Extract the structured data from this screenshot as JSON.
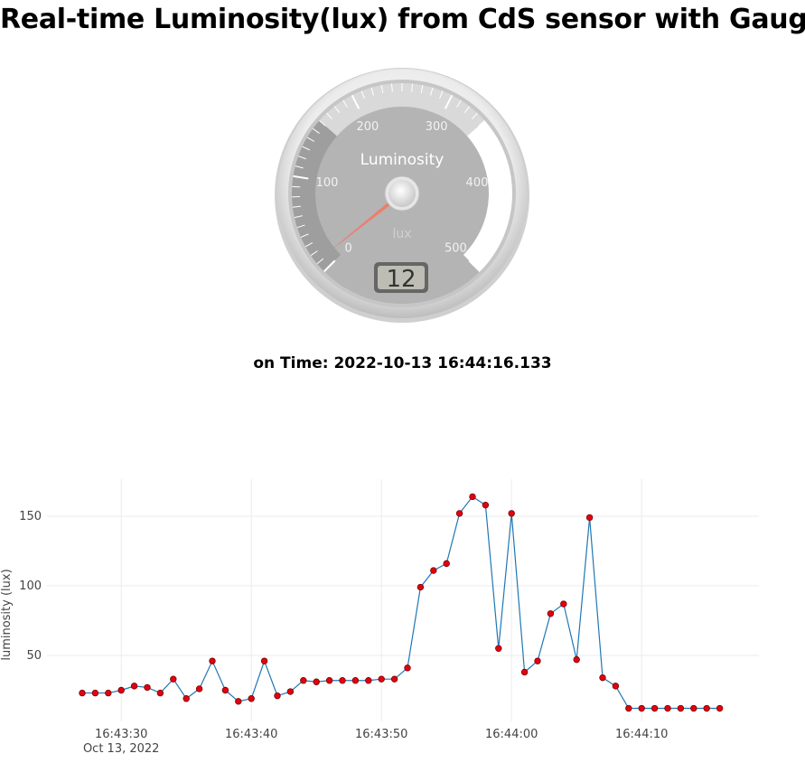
{
  "page": {
    "title": "Real-time Luminosity(lux) from CdS sensor with Gauge",
    "time_prefix": "on Time:",
    "time_value": "2022-10-13 16:44:16.133"
  },
  "gauge": {
    "title": "Luminosity",
    "units": "lux",
    "min": 0,
    "max": 500,
    "major_ticks": [
      "0",
      "100",
      "200",
      "300",
      "400",
      "500"
    ],
    "value": 12,
    "value_display": "12",
    "colors": {
      "needle": "#f07c6c",
      "face": "#b4b4b4",
      "band_low": "#9e9e9e",
      "band_mid": "#d9d9d9",
      "band_high": "#ffffff"
    }
  },
  "chart_data": {
    "type": "line",
    "ylabel": "luminosity (lux)",
    "x_tick_labels": [
      "16:43:30",
      "16:43:40",
      "16:43:50",
      "16:44:00",
      "16:44:10"
    ],
    "x_tick_sublabel": "Oct 13, 2022",
    "y_tick_labels": [
      "50",
      "100",
      "150"
    ],
    "x_start": "16:43:27",
    "x_step_seconds": 1,
    "x": [
      "16:43:27",
      "16:43:28",
      "16:43:29",
      "16:43:30",
      "16:43:31",
      "16:43:32",
      "16:43:33",
      "16:43:34",
      "16:43:35",
      "16:43:36",
      "16:43:37",
      "16:43:38",
      "16:43:39",
      "16:43:40",
      "16:43:41",
      "16:43:42",
      "16:43:43",
      "16:43:44",
      "16:43:45",
      "16:43:46",
      "16:43:47",
      "16:43:48",
      "16:43:49",
      "16:43:50",
      "16:43:51",
      "16:43:52",
      "16:43:53",
      "16:43:54",
      "16:43:55",
      "16:43:56",
      "16:43:57",
      "16:43:58",
      "16:43:59",
      "16:44:00",
      "16:44:01",
      "16:44:02",
      "16:44:03",
      "16:44:04",
      "16:44:05",
      "16:44:06",
      "16:44:07",
      "16:44:08",
      "16:44:09",
      "16:44:10",
      "16:44:11",
      "16:44:12",
      "16:44:13",
      "16:44:14",
      "16:44:15",
      "16:44:16"
    ],
    "series": [
      {
        "values": [
          23,
          23,
          23,
          25,
          28,
          27,
          23,
          33,
          19,
          26,
          46,
          25,
          17,
          19,
          46,
          21,
          24,
          32,
          31,
          32,
          32,
          32,
          32,
          33,
          33,
          41,
          99,
          111,
          116,
          152,
          164,
          158,
          55,
          152,
          38,
          46,
          80,
          87,
          47,
          149,
          34,
          28,
          12,
          12,
          12,
          12,
          12,
          12,
          12,
          12
        ]
      }
    ],
    "ylim": [
      12,
      170
    ],
    "grid": true,
    "colors": {
      "line": "#1f77b4",
      "marker": "#e3000f",
      "marker_edge": "#7a0000",
      "grid": "#ebebeb"
    }
  }
}
